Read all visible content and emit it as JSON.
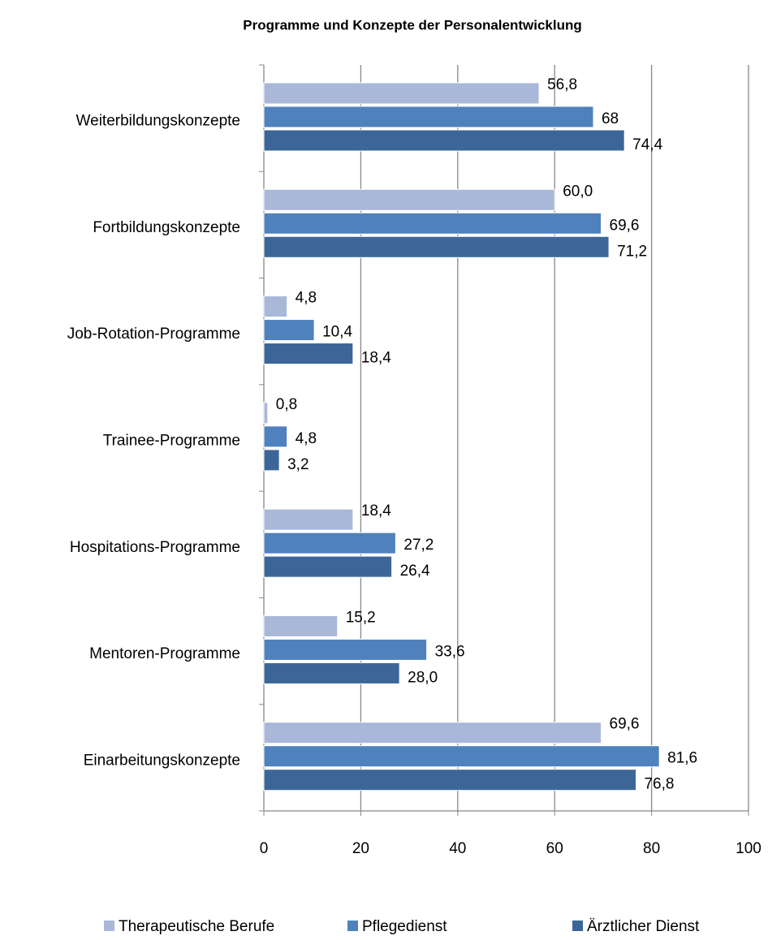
{
  "chart_data": {
    "type": "hbar",
    "title": "Programme und Konzepte der Personalentwicklung",
    "categories": [
      "Weiterbildungskonzepte",
      "Fortbildungskonzepte",
      "Job-Rotation-Programme",
      "Trainee-Programme",
      "Hospitations-Programme",
      "Mentoren-Programme",
      "Einarbeitungskonzepte"
    ],
    "series": [
      {
        "name": "Therapeutische Berufe",
        "color": "#a9b8d9",
        "values": [
          56.8,
          60.0,
          4.8,
          0.8,
          18.4,
          15.2,
          69.6
        ],
        "value_labels": [
          "56,8",
          "60,0",
          "4,8",
          "0,8",
          "18,4",
          "15,2",
          "69,6"
        ]
      },
      {
        "name": "Pflegedienst",
        "color": "#4f81bd",
        "values": [
          68,
          69.6,
          10.4,
          4.8,
          27.2,
          33.6,
          81.6
        ],
        "value_labels": [
          "68",
          "69,6",
          "10,4",
          "4,8",
          "27,2",
          "33,6",
          "81,6"
        ]
      },
      {
        "name": "Ärztlicher Dienst",
        "color": "#3d6698",
        "values": [
          74.4,
          71.2,
          18.4,
          3.2,
          26.4,
          28.0,
          76.8
        ],
        "value_labels": [
          "74,4",
          "71,2",
          "18,4",
          "3,2",
          "26,4",
          "28,0",
          "76,8"
        ]
      }
    ],
    "xlim": [
      0,
      100
    ],
    "xticks": [
      0,
      20,
      40,
      60,
      80,
      100
    ],
    "grid": true,
    "legend": "bottom"
  }
}
